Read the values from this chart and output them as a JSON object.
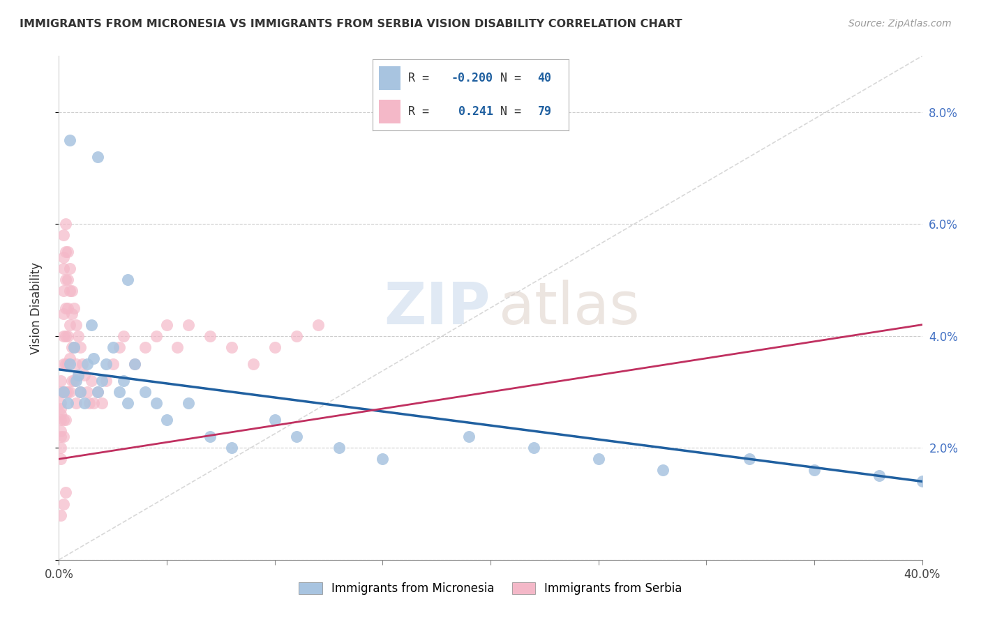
{
  "title": "IMMIGRANTS FROM MICRONESIA VS IMMIGRANTS FROM SERBIA VISION DISABILITY CORRELATION CHART",
  "source": "Source: ZipAtlas.com",
  "ylabel": "Vision Disability",
  "xlim": [
    0.0,
    0.4
  ],
  "ylim": [
    0.0,
    0.09
  ],
  "color_micronesia": "#a8c4e0",
  "color_serbia": "#f4b8c8",
  "trendline_micronesia": "#2060a0",
  "trendline_serbia": "#c03060",
  "diagonal_color": "#c8c8c8",
  "micronesia_x": [
    0.005,
    0.018,
    0.032,
    0.002,
    0.004,
    0.005,
    0.007,
    0.008,
    0.009,
    0.01,
    0.012,
    0.013,
    0.015,
    0.016,
    0.018,
    0.02,
    0.022,
    0.025,
    0.028,
    0.03,
    0.032,
    0.035,
    0.04,
    0.045,
    0.05,
    0.06,
    0.07,
    0.08,
    0.1,
    0.11,
    0.13,
    0.15,
    0.19,
    0.22,
    0.25,
    0.28,
    0.32,
    0.35,
    0.38,
    0.4
  ],
  "micronesia_y": [
    0.075,
    0.072,
    0.05,
    0.03,
    0.028,
    0.035,
    0.038,
    0.032,
    0.033,
    0.03,
    0.028,
    0.035,
    0.042,
    0.036,
    0.03,
    0.032,
    0.035,
    0.038,
    0.03,
    0.032,
    0.028,
    0.035,
    0.03,
    0.028,
    0.025,
    0.028,
    0.022,
    0.02,
    0.025,
    0.022,
    0.02,
    0.018,
    0.022,
    0.02,
    0.018,
    0.016,
    0.018,
    0.016,
    0.015,
    0.014
  ],
  "serbia_x": [
    0.001,
    0.001,
    0.001,
    0.001,
    0.001,
    0.001,
    0.001,
    0.001,
    0.001,
    0.001,
    0.002,
    0.002,
    0.002,
    0.002,
    0.002,
    0.002,
    0.002,
    0.002,
    0.002,
    0.002,
    0.003,
    0.003,
    0.003,
    0.003,
    0.003,
    0.003,
    0.003,
    0.003,
    0.004,
    0.004,
    0.004,
    0.004,
    0.004,
    0.004,
    0.005,
    0.005,
    0.005,
    0.005,
    0.005,
    0.006,
    0.006,
    0.006,
    0.006,
    0.007,
    0.007,
    0.007,
    0.008,
    0.008,
    0.008,
    0.009,
    0.009,
    0.01,
    0.01,
    0.011,
    0.012,
    0.013,
    0.014,
    0.015,
    0.016,
    0.018,
    0.02,
    0.022,
    0.025,
    0.028,
    0.03,
    0.035,
    0.04,
    0.045,
    0.05,
    0.055,
    0.06,
    0.07,
    0.08,
    0.09,
    0.1,
    0.11,
    0.12,
    0.001,
    0.002,
    0.003
  ],
  "serbia_y": [
    0.03,
    0.025,
    0.028,
    0.022,
    0.032,
    0.027,
    0.02,
    0.018,
    0.023,
    0.026,
    0.058,
    0.054,
    0.052,
    0.048,
    0.044,
    0.04,
    0.035,
    0.03,
    0.025,
    0.022,
    0.06,
    0.055,
    0.05,
    0.045,
    0.04,
    0.035,
    0.03,
    0.025,
    0.055,
    0.05,
    0.045,
    0.04,
    0.035,
    0.03,
    0.052,
    0.048,
    0.042,
    0.036,
    0.03,
    0.048,
    0.044,
    0.038,
    0.032,
    0.045,
    0.038,
    0.032,
    0.042,
    0.035,
    0.028,
    0.04,
    0.033,
    0.038,
    0.03,
    0.035,
    0.033,
    0.03,
    0.028,
    0.032,
    0.028,
    0.03,
    0.028,
    0.032,
    0.035,
    0.038,
    0.04,
    0.035,
    0.038,
    0.04,
    0.042,
    0.038,
    0.042,
    0.04,
    0.038,
    0.035,
    0.038,
    0.04,
    0.042,
    0.008,
    0.01,
    0.012
  ]
}
